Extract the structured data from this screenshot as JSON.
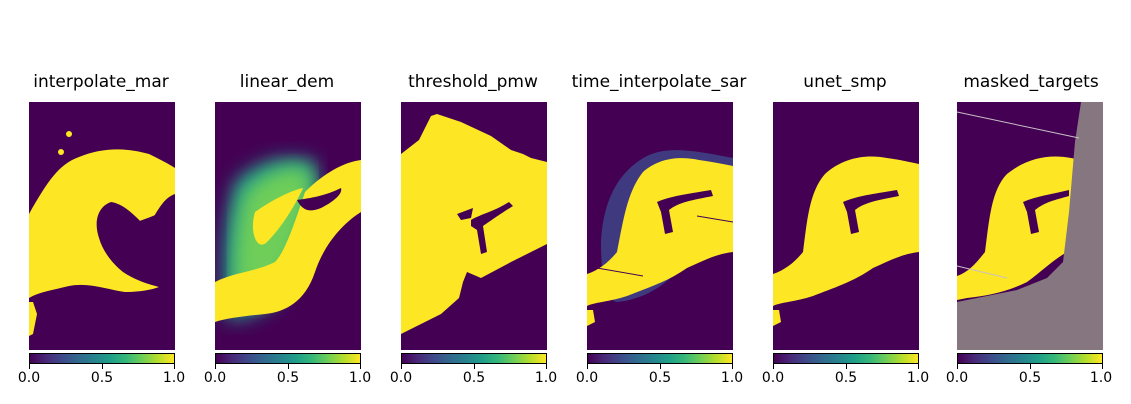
{
  "chart_data": [
    {
      "type": "heatmap",
      "title": "interpolate_mar",
      "colormap": "viridis",
      "colorbar": {
        "range": [
          0.0,
          1.0
        ],
        "ticks": [
          "0.0",
          "0.5",
          "1.0"
        ]
      }
    },
    {
      "type": "heatmap",
      "title": "linear_dem",
      "colormap": "viridis",
      "colorbar": {
        "range": [
          0.0,
          1.0
        ],
        "ticks": [
          "0.0",
          "0.5",
          "1.0"
        ]
      }
    },
    {
      "type": "heatmap",
      "title": "threshold_pmw",
      "colormap": "viridis",
      "colorbar": {
        "range": [
          0.0,
          1.0
        ],
        "ticks": [
          "0.0",
          "0.5",
          "1.0"
        ]
      }
    },
    {
      "type": "heatmap",
      "title": "time_interpolate_sar",
      "colormap": "viridis",
      "colorbar": {
        "range": [
          0.0,
          1.0
        ],
        "ticks": [
          "0.0",
          "0.5",
          "1.0"
        ]
      }
    },
    {
      "type": "heatmap",
      "title": "unet_smp",
      "colormap": "viridis",
      "colorbar": {
        "range": [
          0.0,
          1.0
        ],
        "ticks": [
          "0.0",
          "0.5",
          "1.0"
        ]
      }
    },
    {
      "type": "heatmap",
      "title": "masked_targets",
      "colormap": "viridis",
      "colorbar": {
        "range": [
          0.0,
          1.0
        ],
        "ticks": [
          "0.0",
          "0.5",
          "1.0"
        ]
      }
    }
  ],
  "colors": {
    "low": "#440154",
    "high": "#fde725",
    "masked": "#857680"
  }
}
